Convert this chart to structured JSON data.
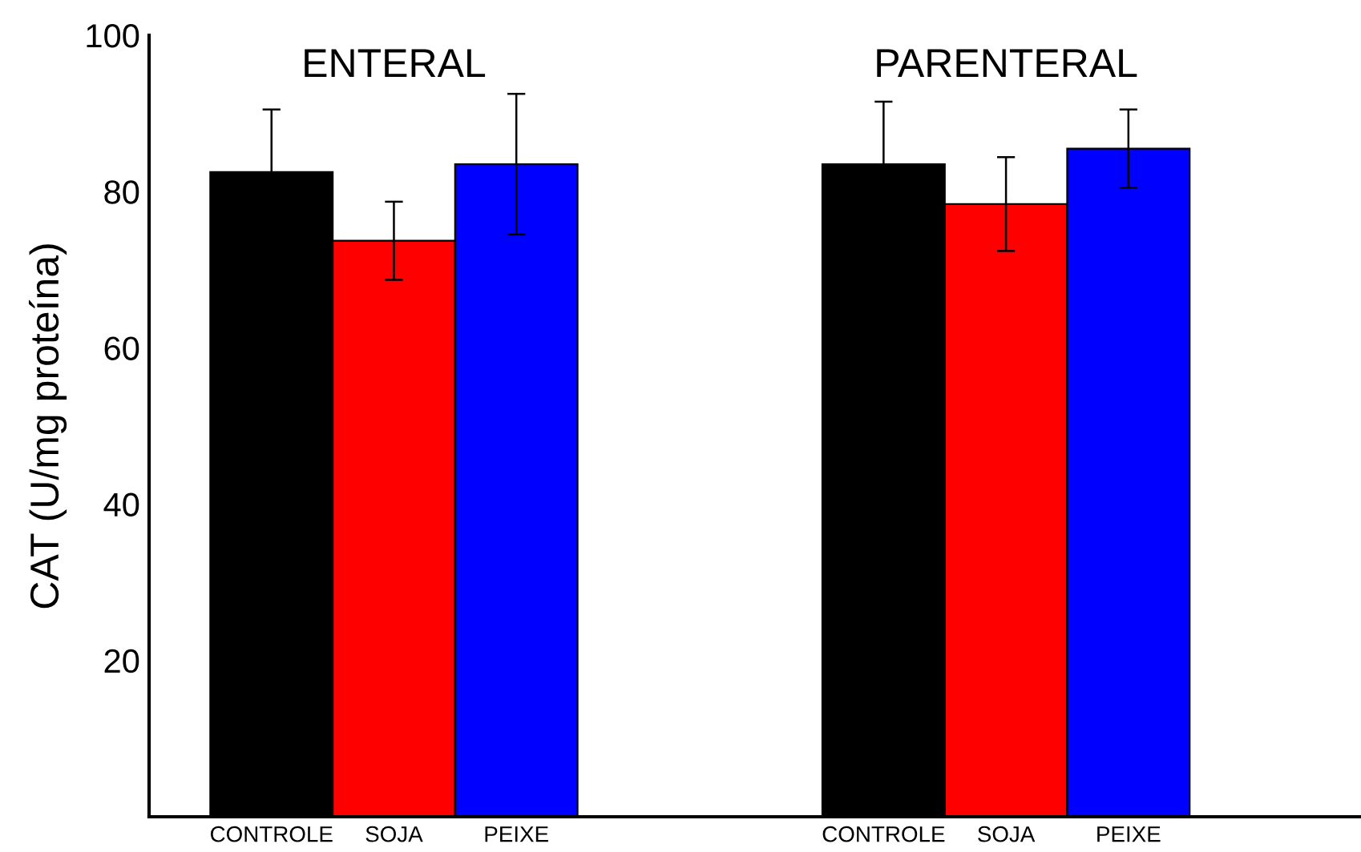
{
  "chart_data": {
    "type": "bar",
    "categories": [
      "CONTROLE",
      "SOJA",
      "PEIXE",
      null,
      null,
      "CONTROLE",
      "SOJA",
      "PEIXE"
    ],
    "values": [
      82.5,
      73.7,
      83.5,
      null,
      null,
      83.5,
      78.4,
      85.5
    ],
    "errors": [
      8,
      5,
      9,
      null,
      null,
      8,
      6,
      5
    ],
    "colors": [
      "#000000",
      "#ff0000",
      "#0000ff",
      null,
      null,
      "#000000",
      "#ff0000",
      "#0000ff"
    ],
    "ylabel": "CAT (U/mg proteína)",
    "ylim": [
      0,
      100
    ],
    "yticks": [
      20,
      40,
      60,
      80,
      100
    ],
    "annotations": [
      "ENTERAL",
      "PARENTERAL"
    ],
    "grid": false,
    "legend": false
  }
}
